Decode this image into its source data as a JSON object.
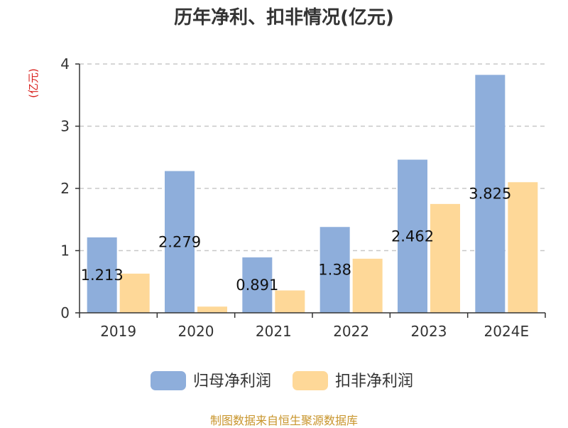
{
  "chart_data": {
    "type": "bar",
    "title": "历年净利、扣非情况(亿元)",
    "ylabel": "(亿元)",
    "xlabel": "",
    "categories": [
      "2019",
      "2020",
      "2021",
      "2022",
      "2023",
      "2024E"
    ],
    "ylim": [
      0,
      4
    ],
    "yticks": [
      0,
      1,
      2,
      3,
      4
    ],
    "grid": true,
    "legend_position": "bottom",
    "series": [
      {
        "name": "归母净利润",
        "color": "#8eaedb",
        "values": [
          1.213,
          2.279,
          0.891,
          1.38,
          2.462,
          3.825
        ],
        "labels": [
          "1.213",
          "2.279",
          "0.891",
          "1.38",
          "2.462",
          "3.825"
        ]
      },
      {
        "name": "扣非净利润",
        "color": "#fed898",
        "values": [
          0.63,
          0.1,
          0.36,
          0.87,
          1.75,
          2.1
        ]
      }
    ],
    "source": "制图数据来自恒生聚源数据库"
  }
}
